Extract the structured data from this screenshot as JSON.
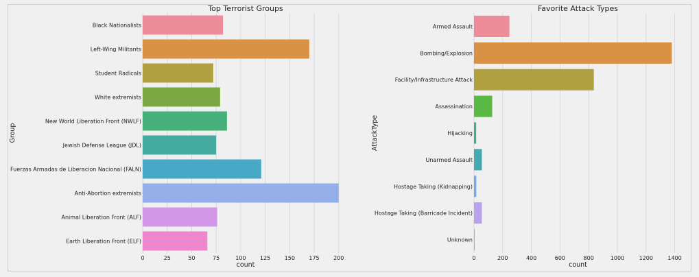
{
  "chart_data": [
    {
      "type": "bar",
      "orientation": "horizontal",
      "title": "Top Terrorist Groups",
      "xlabel": "count",
      "ylabel": "Group",
      "xlim": [
        0,
        210
      ],
      "xticks": [
        0,
        25,
        50,
        75,
        100,
        125,
        150,
        175,
        200
      ],
      "grid": true,
      "categories": [
        "Black Nationalists",
        "Left-Wing Militants",
        "Student Radicals",
        "White extremists",
        "New World Liberation Front (NWLF)",
        "Jewish Defense League (JDL)",
        "Fuerzas Armadas de Liberacion Nacional (FALN)",
        "Anti-Abortion extremists",
        "Animal Liberation Front (ALF)",
        "Earth Liberation Front (ELF)"
      ],
      "values": [
        82,
        170,
        72,
        79,
        86,
        75,
        121,
        200,
        76,
        66
      ],
      "colors": [
        "#ee8d99",
        "#d99146",
        "#b0a040",
        "#7ba842",
        "#45b07a",
        "#45aa9f",
        "#48a8c6",
        "#93aee8",
        "#d398e8",
        "#ee86cc"
      ]
    },
    {
      "type": "bar",
      "orientation": "horizontal",
      "title": "Favorite Attack Types",
      "xlabel": "count",
      "ylabel": "AttackType",
      "xlim": [
        0,
        1450
      ],
      "xticks": [
        0,
        200,
        400,
        600,
        800,
        1000,
        1200,
        1400
      ],
      "grid": true,
      "categories": [
        "Armed Assault",
        "Bombing/Explosion",
        "Facility/Infrastructure Attack",
        "Assassination",
        "Hijacking",
        "Unarmed Assault",
        "Hostage Taking (Kidnapping)",
        "Hostage Taking (Barricade Incident)",
        "Unknown"
      ],
      "values": [
        247,
        1380,
        836,
        127,
        15,
        55,
        16,
        55,
        4
      ],
      "colors": [
        "#ee8d99",
        "#d99146",
        "#b0a040",
        "#5ab845",
        "#45ad8f",
        "#45aab2",
        "#75a9e8",
        "#b9a3ee",
        "#ee86cc"
      ]
    }
  ]
}
